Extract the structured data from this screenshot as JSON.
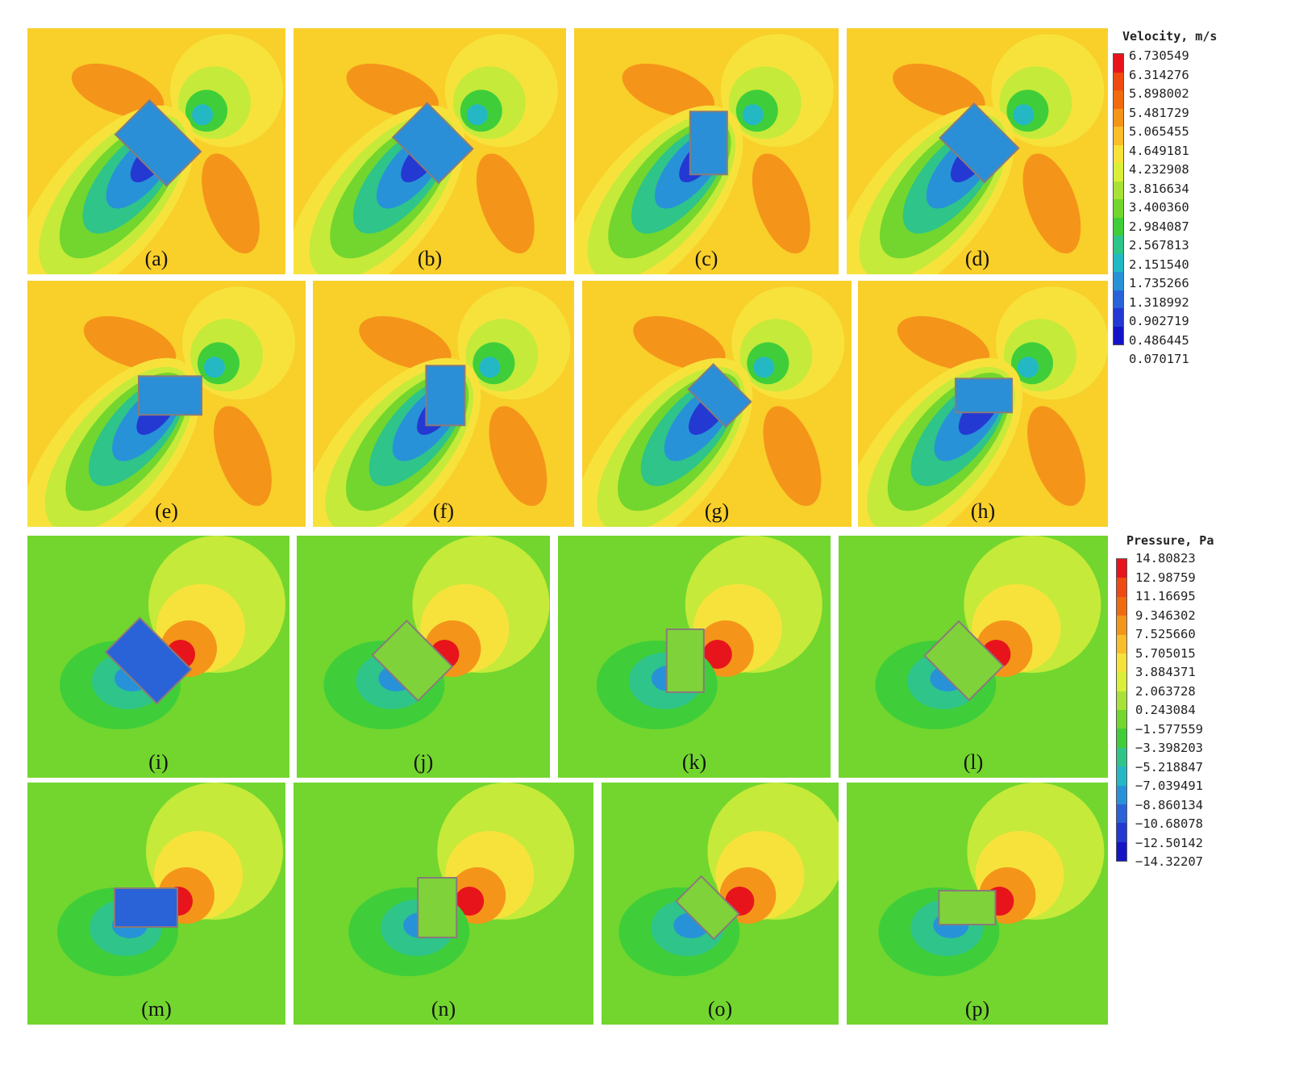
{
  "velocity_panel_labels": [
    "(a)",
    "(b)",
    "(c)",
    "(d)",
    "(e)",
    "(f)",
    "(g)",
    "(h)"
  ],
  "pressure_panel_labels": [
    "(i)",
    "(j)",
    "(k)",
    "(l)",
    "(m)",
    "(n)",
    "(o)",
    "(p)"
  ],
  "velocity_legend": {
    "title": "Velocity, m/s",
    "values": [
      "6.730549",
      "6.314276",
      "5.898002",
      "5.481729",
      "5.065455",
      "4.649181",
      "4.232908",
      "3.816634",
      "3.400360",
      "2.984087",
      "2.567813",
      "2.151540",
      "1.735266",
      "1.318992",
      "0.902719",
      "0.486445",
      "0.070171"
    ],
    "colors": [
      "#e8141c",
      "#ee4a12",
      "#f06a10",
      "#f4951a",
      "#f9be2a",
      "#f7e23c",
      "#d9ef3a",
      "#a9e236",
      "#72d62e",
      "#3fce3a",
      "#2ec48a",
      "#24b8c4",
      "#2892d8",
      "#2a62d8",
      "#2438d2",
      "#1414c6"
    ]
  },
  "pressure_legend": {
    "title": "Pressure, Pa",
    "values": [
      "14.80823",
      "12.98759",
      "11.16695",
      "9.346302",
      "7.525660",
      "5.705015",
      "3.884371",
      "2.063728",
      "0.243084",
      "−1.577559",
      "−3.398203",
      "−5.218847",
      "−7.039491",
      "−8.860134",
      "−10.68078",
      "−12.50142",
      "−14.32207"
    ],
    "colors": [
      "#e8141c",
      "#ee4a12",
      "#f06a10",
      "#f4951a",
      "#f9be2a",
      "#f7e23c",
      "#d9ef3a",
      "#a9e236",
      "#72d62e",
      "#3fce3a",
      "#2ec48a",
      "#24b8c4",
      "#2892d8",
      "#2a62d8",
      "#2438d2",
      "#1414c6"
    ]
  }
}
